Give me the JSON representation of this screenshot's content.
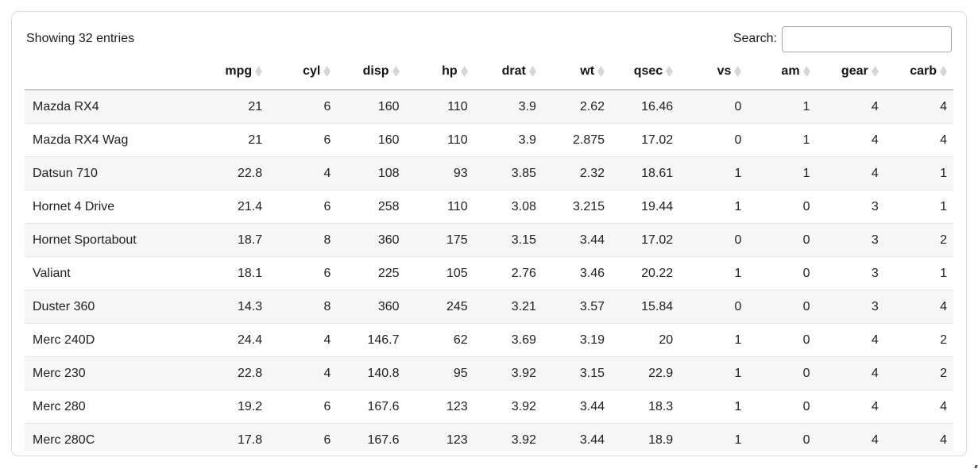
{
  "card": {
    "info_text": "Showing 32 entries",
    "search": {
      "label": "Search:",
      "value": ""
    }
  },
  "colors": {
    "card_border": "#dbdbdb",
    "header_rule": "#c9c9c9",
    "row_rule": "#e7e7e7",
    "row_stripe": "#f6f6f6",
    "sort_icon": "#d6d6d6",
    "text": "#1c1c1c"
  },
  "table": {
    "row_label_header": "",
    "columns": [
      "mpg",
      "cyl",
      "disp",
      "hp",
      "drat",
      "wt",
      "qsec",
      "vs",
      "am",
      "gear",
      "carb"
    ],
    "rows": [
      {
        "name": "Mazda RX4",
        "values": [
          "21",
          "6",
          "160",
          "110",
          "3.9",
          "2.62",
          "16.46",
          "0",
          "1",
          "4",
          "4"
        ]
      },
      {
        "name": "Mazda RX4 Wag",
        "values": [
          "21",
          "6",
          "160",
          "110",
          "3.9",
          "2.875",
          "17.02",
          "0",
          "1",
          "4",
          "4"
        ]
      },
      {
        "name": "Datsun 710",
        "values": [
          "22.8",
          "4",
          "108",
          "93",
          "3.85",
          "2.32",
          "18.61",
          "1",
          "1",
          "4",
          "1"
        ]
      },
      {
        "name": "Hornet 4 Drive",
        "values": [
          "21.4",
          "6",
          "258",
          "110",
          "3.08",
          "3.215",
          "19.44",
          "1",
          "0",
          "3",
          "1"
        ]
      },
      {
        "name": "Hornet Sportabout",
        "values": [
          "18.7",
          "8",
          "360",
          "175",
          "3.15",
          "3.44",
          "17.02",
          "0",
          "0",
          "3",
          "2"
        ]
      },
      {
        "name": "Valiant",
        "values": [
          "18.1",
          "6",
          "225",
          "105",
          "2.76",
          "3.46",
          "20.22",
          "1",
          "0",
          "3",
          "1"
        ]
      },
      {
        "name": "Duster 360",
        "values": [
          "14.3",
          "8",
          "360",
          "245",
          "3.21",
          "3.57",
          "15.84",
          "0",
          "0",
          "3",
          "4"
        ]
      },
      {
        "name": "Merc 240D",
        "values": [
          "24.4",
          "4",
          "146.7",
          "62",
          "3.69",
          "3.19",
          "20",
          "1",
          "0",
          "4",
          "2"
        ]
      },
      {
        "name": "Merc 230",
        "values": [
          "22.8",
          "4",
          "140.8",
          "95",
          "3.92",
          "3.15",
          "22.9",
          "1",
          "0",
          "4",
          "2"
        ]
      },
      {
        "name": "Merc 280",
        "values": [
          "19.2",
          "6",
          "167.6",
          "123",
          "3.92",
          "3.44",
          "18.3",
          "1",
          "0",
          "4",
          "4"
        ]
      },
      {
        "name": "Merc 280C",
        "values": [
          "17.8",
          "6",
          "167.6",
          "123",
          "3.92",
          "3.44",
          "18.9",
          "1",
          "0",
          "4",
          "4"
        ]
      }
    ]
  }
}
